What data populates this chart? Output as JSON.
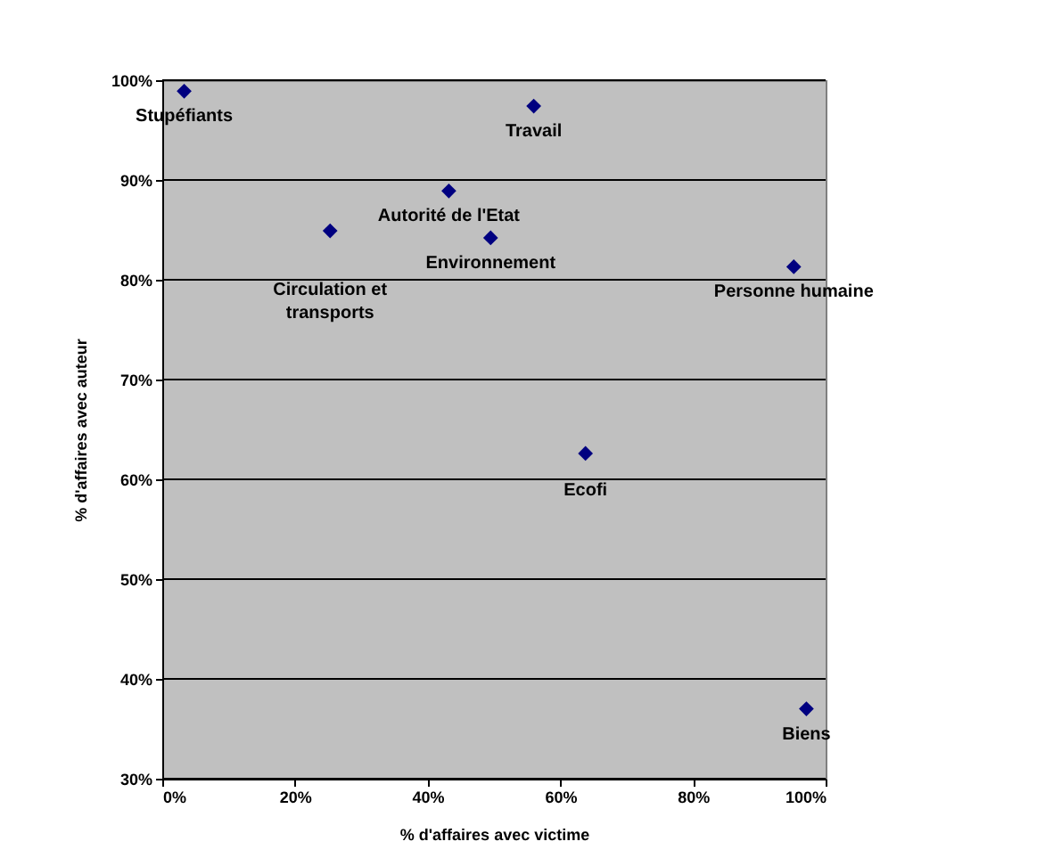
{
  "chart_data": {
    "type": "scatter",
    "xlabel": "% d'affaires avec victime",
    "ylabel": "% d'affaires avec auteur",
    "x": [
      3.3,
      25.3,
      43.2,
      49.5,
      56.0,
      95.2,
      63.8,
      97.1
    ],
    "series": [
      {
        "color": "#000080",
        "values": [
          98.9,
          84.9,
          88.9,
          84.2,
          97.4,
          81.3,
          62.6,
          37.0
        ]
      }
    ],
    "annotations": [
      {
        "text": "Stupéfiants",
        "x": 3.3,
        "y": 98.9
      },
      {
        "text": "Circulation et\ntransports",
        "x": 25.3,
        "y": 84.9
      },
      {
        "text": "Autorité de l'Etat",
        "x": 43.2,
        "y": 88.9
      },
      {
        "text": "Environnement",
        "x": 49.5,
        "y": 84.2
      },
      {
        "text": "Travail",
        "x": 56.0,
        "y": 97.4
      },
      {
        "text": "Personne humaine",
        "x": 95.2,
        "y": 81.3
      },
      {
        "text": "Ecofi",
        "x": 63.8,
        "y": 62.6
      },
      {
        "text": "Biens",
        "x": 97.1,
        "y": 37.0
      }
    ],
    "xlim": [
      0,
      100
    ],
    "ylim": [
      30,
      100
    ],
    "xticks": [
      {
        "value": 0,
        "label": "0%"
      },
      {
        "value": 20,
        "label": "20%"
      },
      {
        "value": 40,
        "label": "40%"
      },
      {
        "value": 60,
        "label": "60%"
      },
      {
        "value": 80,
        "label": "80%"
      },
      {
        "value": 100,
        "label": "100%"
      }
    ],
    "yticks": [
      {
        "value": 30,
        "label": "30%"
      },
      {
        "value": 40,
        "label": "40%"
      },
      {
        "value": 50,
        "label": "50%"
      },
      {
        "value": 60,
        "label": "60%"
      },
      {
        "value": 70,
        "label": "70%"
      },
      {
        "value": 80,
        "label": "80%"
      },
      {
        "value": 90,
        "label": "90%"
      },
      {
        "value": 100,
        "label": "100%"
      }
    ],
    "grid": "y",
    "marker": "diamond",
    "legend": false
  }
}
